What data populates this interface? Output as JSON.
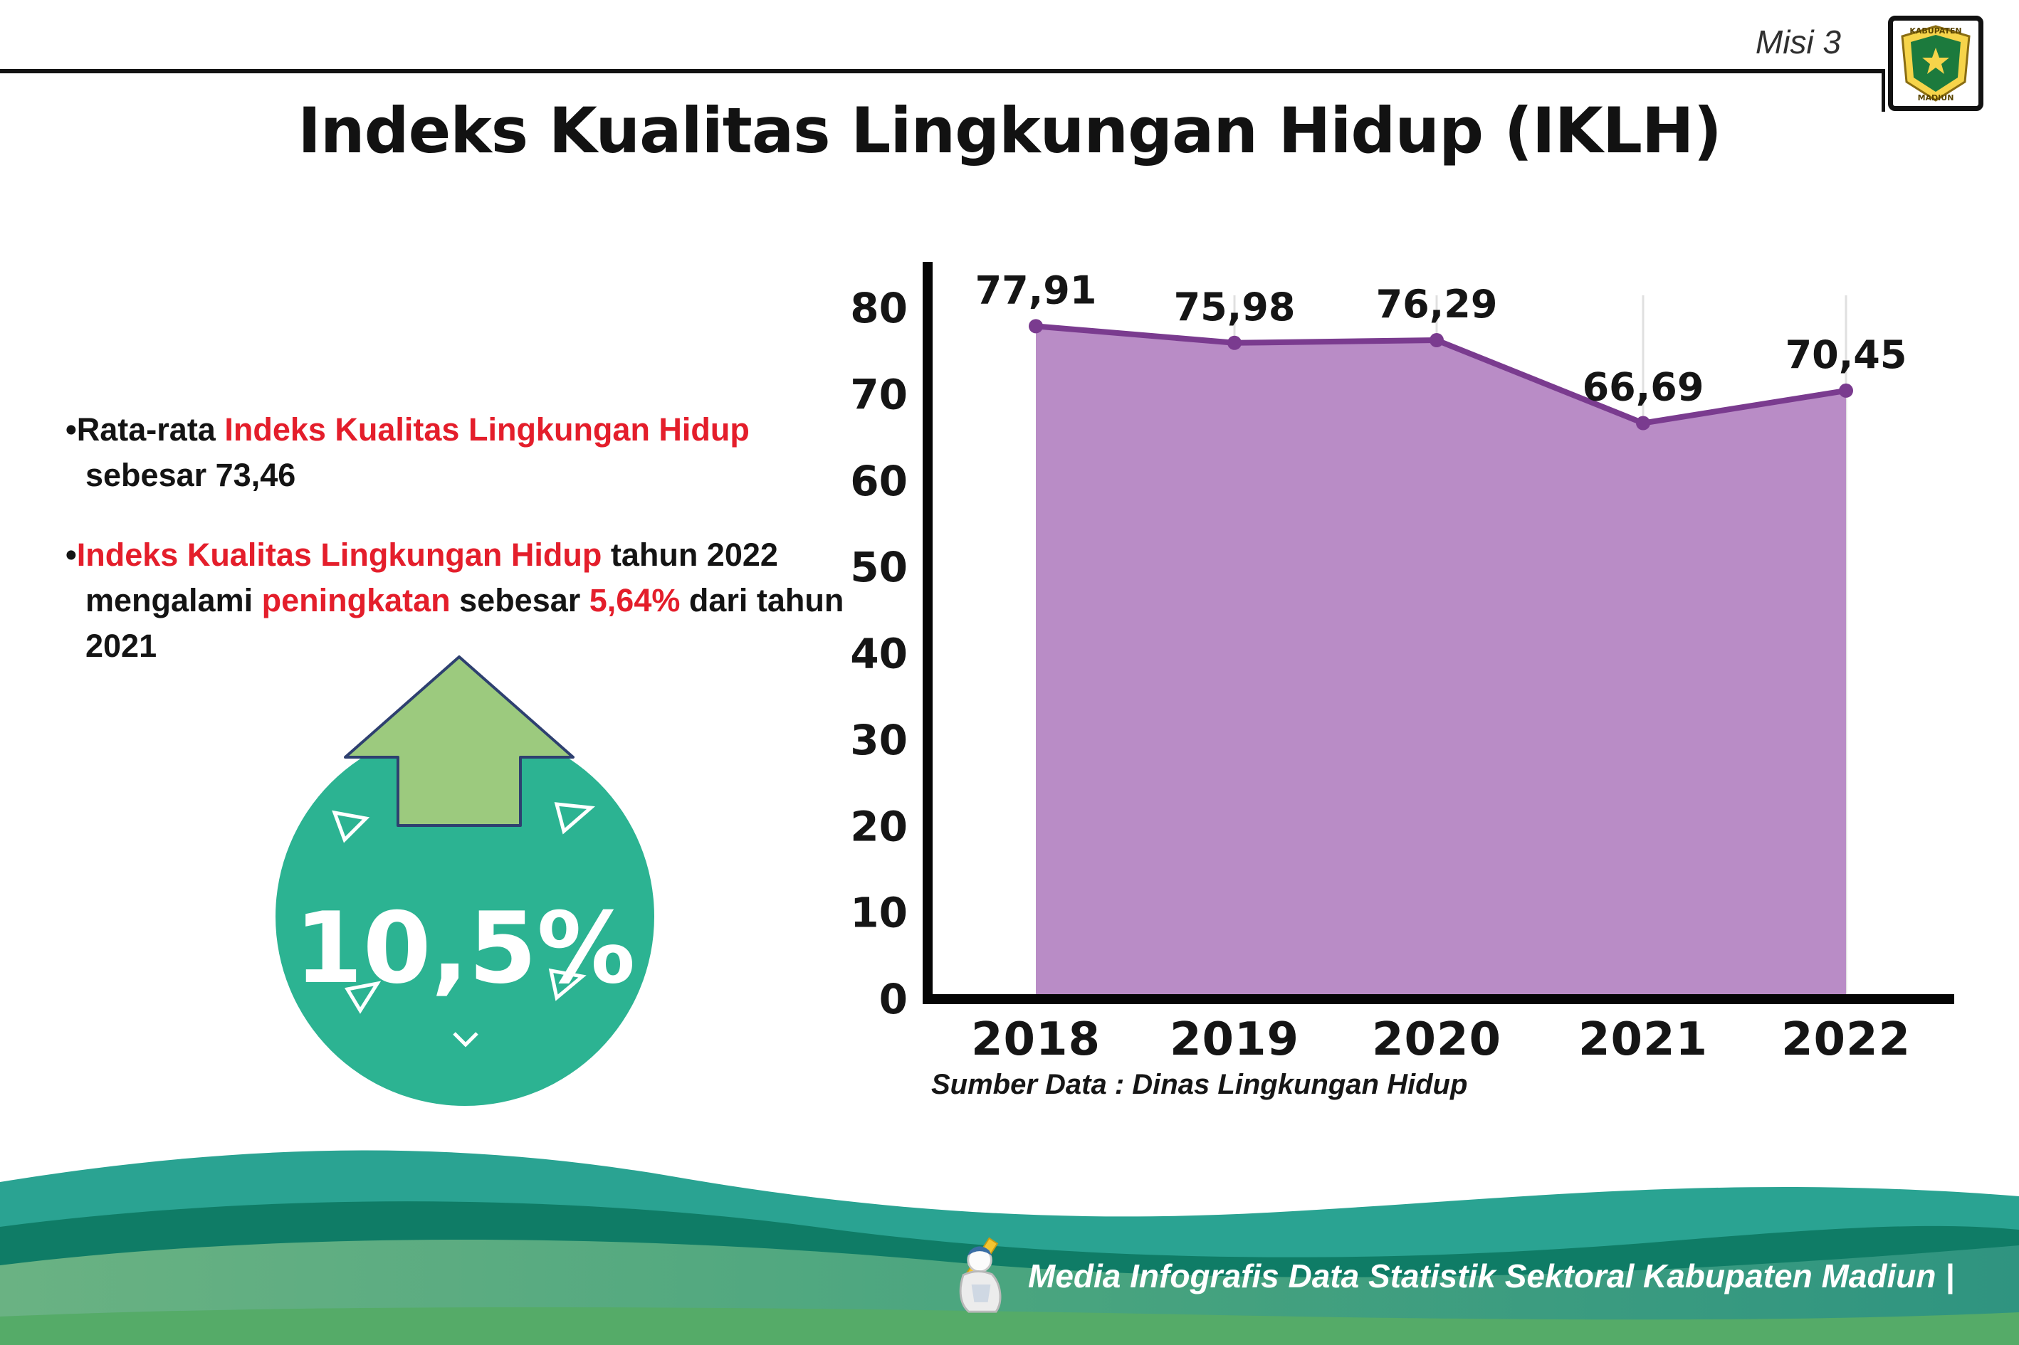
{
  "header": {
    "misi_label": "Misi 3",
    "title": "Indeks Kualitas Lingkungan Hidup (IKLH)"
  },
  "logo": {
    "top_text": "KABUPATEN",
    "bottom_text": "MADIUN"
  },
  "bullets": {
    "glyph": "•",
    "b1": {
      "seg1": "Rata-rata ",
      "seg2": "Indeks Kualitas Lingkungan Hidup",
      "seg3": " sebesar 73,46"
    },
    "b2": {
      "seg1": "Indeks Kualitas Lingkungan Hidup",
      "seg2": " tahun 2022 mengalami ",
      "seg3": "peningkatan",
      "seg4": " sebesar ",
      "seg5": "5,64%",
      "seg6": " dari tahun 2021"
    }
  },
  "badge": {
    "value": "10,5%"
  },
  "chart_data": {
    "type": "area",
    "title": "Indeks Kualitas Lingkungan Hidup (IKLH)",
    "categories": [
      "2018",
      "2019",
      "2020",
      "2021",
      "2022"
    ],
    "values": [
      77.91,
      75.98,
      76.29,
      66.69,
      70.45
    ],
    "value_labels": [
      "77,91",
      "75,98",
      "76,29",
      "66,69",
      "70,45"
    ],
    "xlabel": "",
    "ylabel": "",
    "ylim": [
      0,
      80
    ],
    "yticks": [
      0,
      10,
      20,
      30,
      40,
      50,
      60,
      70,
      80
    ],
    "grid": "faint-vertical",
    "legend": "none",
    "area_fill": "#b98cc6",
    "line_color": "#7a3b8f",
    "source": "Sumber Data : Dinas Lingkungan Hidup"
  },
  "footer": {
    "credit": "Media Infografis Data Statistik Sektoral Kabupaten Madiun |"
  },
  "colors": {
    "accent_red": "#e41e2b",
    "circle_teal": "#2cb392",
    "arrow_green": "#9cca7e",
    "purple_fill": "#b98cc6",
    "purple_line": "#7a3b8f",
    "wave_teal": "#2aa392",
    "wave_dark_green": "#0f7c66",
    "wave_main_green": "#4aa57f",
    "wave_bottom_strip": "#55ab68"
  }
}
